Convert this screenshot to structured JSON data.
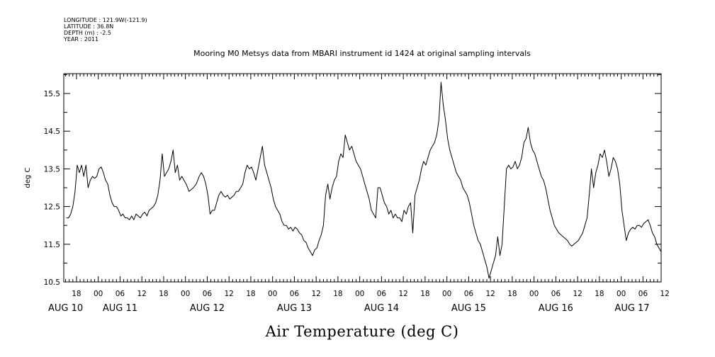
{
  "header": {
    "longitude": "LONGITUDE : 121.9W(-121.9)",
    "latitude": "LATITUDE : 36.8N",
    "depth": "DEPTH (m) : -2.5",
    "year": "YEAR : 2011"
  },
  "chart_data": {
    "type": "line",
    "title": "Mooring M0 Metsys data from MBARI instrument id 1424 at original sampling intervals",
    "xlabel": "Air Temperature (deg C)",
    "ylabel": "deg C",
    "ylim": [
      10.5,
      16.0
    ],
    "yticks": [
      10.5,
      11.5,
      12.5,
      13.5,
      14.5,
      15.5
    ],
    "ytick_labels": [
      "10.5",
      "11.5",
      "12.5",
      "13.5",
      "14.5",
      "15.5"
    ],
    "xlim_hours": [
      14.5,
      179
    ],
    "x_unit": "hours since AUG 10 00:00, 2011",
    "hour_tick_labels": [
      {
        "h": 18,
        "label": "18"
      },
      {
        "h": 24,
        "label": "00"
      },
      {
        "h": 30,
        "label": "06"
      },
      {
        "h": 36,
        "label": "12"
      },
      {
        "h": 42,
        "label": "18"
      },
      {
        "h": 48,
        "label": "00"
      },
      {
        "h": 54,
        "label": "06"
      },
      {
        "h": 60,
        "label": "12"
      },
      {
        "h": 66,
        "label": "18"
      },
      {
        "h": 72,
        "label": "00"
      },
      {
        "h": 78,
        "label": "06"
      },
      {
        "h": 84,
        "label": "12"
      },
      {
        "h": 90,
        "label": "18"
      },
      {
        "h": 96,
        "label": "00"
      },
      {
        "h": 102,
        "label": "06"
      },
      {
        "h": 108,
        "label": "12"
      },
      {
        "h": 114,
        "label": "18"
      },
      {
        "h": 120,
        "label": "00"
      },
      {
        "h": 126,
        "label": "06"
      },
      {
        "h": 132,
        "label": "12"
      },
      {
        "h": 138,
        "label": "18"
      },
      {
        "h": 144,
        "label": "00"
      },
      {
        "h": 150,
        "label": "06"
      },
      {
        "h": 156,
        "label": "12"
      },
      {
        "h": 162,
        "label": "18"
      },
      {
        "h": 168,
        "label": "00"
      },
      {
        "h": 174,
        "label": "06"
      },
      {
        "h": 180,
        "label": "12"
      }
    ],
    "date_labels": [
      {
        "h": 15,
        "label": "AUG 10"
      },
      {
        "h": 30,
        "label": "AUG 11"
      },
      {
        "h": 54,
        "label": "AUG 12"
      },
      {
        "h": 78,
        "label": "AUG 13"
      },
      {
        "h": 102,
        "label": "AUG 14"
      },
      {
        "h": 126,
        "label": "AUG 15"
      },
      {
        "h": 150,
        "label": "AUG 16"
      },
      {
        "h": 171,
        "label": "AUG 17"
      }
    ],
    "series": [
      {
        "name": "Air Temperature",
        "x": [
          15.2,
          15.8,
          16.4,
          17.0,
          17.6,
          18.2,
          18.8,
          19.4,
          20.0,
          20.6,
          21.2,
          21.8,
          22.4,
          23.0,
          23.6,
          24.2,
          24.8,
          25.4,
          26.0,
          26.6,
          27.2,
          27.8,
          28.4,
          29.0,
          29.6,
          30.2,
          30.8,
          31.4,
          32.0,
          32.6,
          33.2,
          33.8,
          34.4,
          35.0,
          35.6,
          36.2,
          36.8,
          37.4,
          38.0,
          38.6,
          39.2,
          39.8,
          40.4,
          41.0,
          41.6,
          42.2,
          42.8,
          43.4,
          44.0,
          44.6,
          45.2,
          45.8,
          46.4,
          47.0,
          47.6,
          48.2,
          49.0,
          50.2,
          51.0,
          51.8,
          52.4,
          53.0,
          53.6,
          54.2,
          54.8,
          55.4,
          56.0,
          56.6,
          57.2,
          57.8,
          58.4,
          59.0,
          59.6,
          60.2,
          60.8,
          61.4,
          62.0,
          62.6,
          63.2,
          63.8,
          64.4,
          65.0,
          65.6,
          66.2,
          66.8,
          67.4,
          68.0,
          68.6,
          69.2,
          69.8,
          70.4,
          71.0,
          71.6,
          72.2,
          72.8,
          73.4,
          74.0,
          74.6,
          75.2,
          75.8,
          76.4,
          77.0,
          77.6,
          78.2,
          78.8,
          79.4,
          80.0,
          80.6,
          81.2,
          81.8,
          82.4,
          83.0,
          83.6,
          84.2,
          84.8,
          85.4,
          86.0,
          86.6,
          87.2,
          87.8,
          88.4,
          89.0,
          89.6,
          90.2,
          90.8,
          91.4,
          92.0,
          92.6,
          93.2,
          93.8,
          94.4,
          95.0,
          95.6,
          96.2,
          96.8,
          97.4,
          98.0,
          98.6,
          99.2,
          99.8,
          100.4,
          101.0,
          101.6,
          102.2,
          102.8,
          103.4,
          104.0,
          104.6,
          105.2,
          105.8,
          106.4,
          107.0,
          107.6,
          108.2,
          108.8,
          109.4,
          110.0,
          110.6,
          111.2,
          111.8,
          112.4,
          113.0,
          113.6,
          114.2,
          114.8,
          115.4,
          116.0,
          116.6,
          117.2,
          117.8,
          118.4,
          119.0,
          119.6,
          120.2,
          120.8,
          121.4,
          122.0,
          122.6,
          123.2,
          123.8,
          124.4,
          125.0,
          125.6,
          126.2,
          126.8,
          127.4,
          128.0,
          128.6,
          129.2,
          129.8,
          130.4,
          131.0,
          131.6,
          132.2,
          132.8,
          133.4,
          134.0,
          134.6,
          135.2,
          135.8,
          136.4,
          137.0,
          137.6,
          138.2,
          138.8,
          139.4,
          140.0,
          140.6,
          141.2,
          141.8,
          142.4,
          143.0,
          143.6,
          144.2,
          144.8,
          145.4,
          146.0,
          146.6,
          147.2,
          147.8,
          148.4,
          149.0,
          149.6,
          150.2,
          150.8,
          151.4,
          152.0,
          152.6,
          153.2,
          153.8,
          154.4,
          155.0,
          155.6,
          156.2,
          156.8,
          157.4,
          158.0,
          158.6,
          159.2,
          159.8,
          160.4,
          161.0,
          161.6,
          162.2,
          162.8,
          163.4,
          164.0,
          164.6,
          165.2,
          165.8,
          166.4,
          167.0,
          167.6,
          168.2,
          168.8,
          169.4,
          170.0,
          170.6,
          171.2,
          171.8,
          172.4,
          173.0,
          173.6,
          174.2,
          174.8,
          175.4,
          176.0,
          176.6,
          177.2,
          177.8,
          178.4,
          179.0
        ],
        "y": [
          12.2,
          12.2,
          12.3,
          12.5,
          12.9,
          13.6,
          13.4,
          13.6,
          13.3,
          13.6,
          13.0,
          13.2,
          13.3,
          13.25,
          13.3,
          13.5,
          13.55,
          13.4,
          13.2,
          13.1,
          12.8,
          12.6,
          12.5,
          12.5,
          12.4,
          12.25,
          12.3,
          12.2,
          12.2,
          12.15,
          12.25,
          12.15,
          12.3,
          12.25,
          12.2,
          12.3,
          12.35,
          12.25,
          12.4,
          12.45,
          12.5,
          12.6,
          12.8,
          13.2,
          13.9,
          13.3,
          13.4,
          13.5,
          13.7,
          14.0,
          13.4,
          13.6,
          13.2,
          13.3,
          13.2,
          13.1,
          12.9,
          13.0,
          13.1,
          13.3,
          13.4,
          13.3,
          13.1,
          12.8,
          12.3,
          12.4,
          12.4,
          12.6,
          12.8,
          12.9,
          12.8,
          12.75,
          12.8,
          12.7,
          12.75,
          12.8,
          12.9,
          12.9,
          13.0,
          13.1,
          13.4,
          13.6,
          13.5,
          13.55,
          13.4,
          13.2,
          13.5,
          13.8,
          14.1,
          13.6,
          13.4,
          13.2,
          13.0,
          12.7,
          12.5,
          12.4,
          12.3,
          12.1,
          12.0,
          12.0,
          11.9,
          11.95,
          11.85,
          11.95,
          11.9,
          11.8,
          11.75,
          11.6,
          11.55,
          11.4,
          11.3,
          11.2,
          11.35,
          11.4,
          11.6,
          11.75,
          12.0,
          12.8,
          13.1,
          12.7,
          13.0,
          13.2,
          13.3,
          13.7,
          13.9,
          13.8,
          14.4,
          14.2,
          14.0,
          14.1,
          13.9,
          13.7,
          13.6,
          13.5,
          13.3,
          13.1,
          12.9,
          12.7,
          12.4,
          12.3,
          12.2,
          13.0,
          13.0,
          12.8,
          12.6,
          12.5,
          12.3,
          12.4,
          12.2,
          12.3,
          12.2,
          12.2,
          12.1,
          12.4,
          12.3,
          12.5,
          12.6,
          11.8,
          12.8,
          13.0,
          13.2,
          13.5,
          13.7,
          13.6,
          13.8,
          14.0,
          14.1,
          14.2,
          14.4,
          14.8,
          15.8,
          15.2,
          14.8,
          14.3,
          14.0,
          13.8,
          13.6,
          13.4,
          13.3,
          13.2,
          13.0,
          12.9,
          12.8,
          12.6,
          12.3,
          12.0,
          11.8,
          11.6,
          11.5,
          11.3,
          11.1,
          10.9,
          10.6,
          10.8,
          11.0,
          11.2,
          11.7,
          11.2,
          11.5,
          12.5,
          13.5,
          13.6,
          13.5,
          13.55,
          13.7,
          13.5,
          13.6,
          13.8,
          14.2,
          14.3,
          14.6,
          14.2,
          14.0,
          13.9,
          13.7,
          13.5,
          13.3,
          13.2,
          13.0,
          12.7,
          12.4,
          12.2,
          12.0,
          11.9,
          11.8,
          11.75,
          11.7,
          11.65,
          11.6,
          11.5,
          11.45,
          11.5,
          11.55,
          11.6,
          11.7,
          11.8,
          12.0,
          12.2,
          12.8,
          13.5,
          13.0,
          13.4,
          13.6,
          13.9,
          13.8,
          14.0,
          13.7,
          13.3,
          13.5,
          13.8,
          13.7,
          13.5,
          13.1,
          12.4,
          12.0,
          11.6,
          11.8,
          11.9,
          11.95,
          11.9,
          12.0,
          12.0,
          11.95,
          12.05,
          12.1,
          12.15,
          12.0,
          11.8,
          11.7,
          11.5,
          11.4,
          11.3
        ]
      }
    ]
  }
}
